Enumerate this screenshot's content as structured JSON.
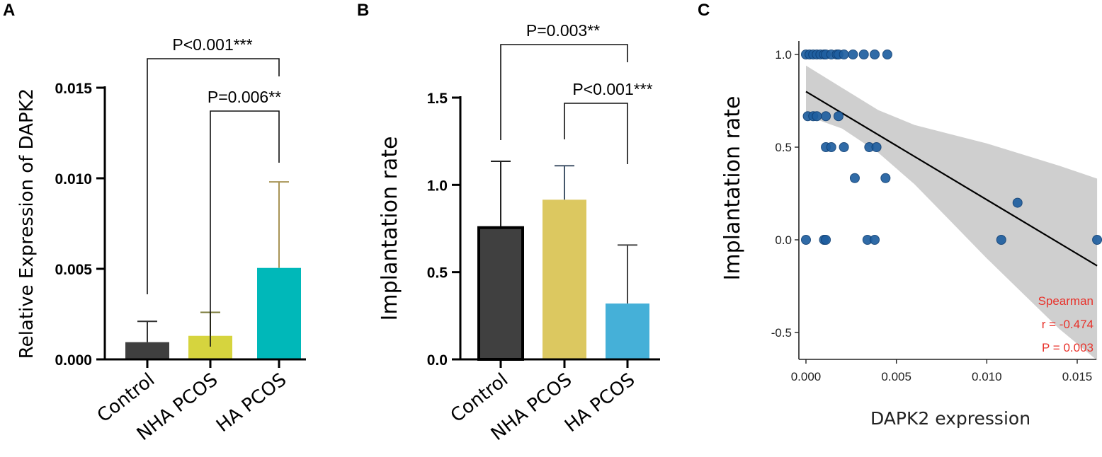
{
  "chart_data": [
    {
      "panel": "A",
      "type": "bar",
      "categories": [
        "Control",
        "NHA PCOS",
        "HA PCOS"
      ],
      "values": [
        0.00095,
        0.0013,
        0.00505
      ],
      "errors": [
        0.00115,
        0.0013,
        0.00475
      ],
      "colors": [
        "#3f3f3f",
        "#d6d43e",
        "#00b8b9"
      ],
      "errorbar_colors": [
        "#333333",
        "#7a7a3a",
        "#a89456"
      ],
      "ylabel": "Relative Expression of DAPK2",
      "ylim": [
        0,
        0.015
      ],
      "yticks": [
        "0.000",
        "0.005",
        "0.010",
        "0.015"
      ],
      "annotations": [
        {
          "text": "P<0.001***",
          "from": 0,
          "to": 2
        },
        {
          "text": "P=0.006**",
          "from": 1,
          "to": 2
        }
      ]
    },
    {
      "panel": "B",
      "type": "bar",
      "categories": [
        "Control",
        "NHA PCOS",
        "HA PCOS"
      ],
      "values": [
        0.755,
        0.915,
        0.32
      ],
      "errors": [
        0.38,
        0.195,
        0.335
      ],
      "colors": [
        "#404040",
        "#dcc860",
        "#45b0d8"
      ],
      "errorbar_colors": [
        "#222222",
        "#44566a",
        "#444444"
      ],
      "ylabel": "Implantation rate",
      "ylim": [
        0,
        1.5
      ],
      "yticks": [
        "0.0",
        "0.5",
        "1.0",
        "1.5"
      ],
      "annotations": [
        {
          "text": "P=0.003**",
          "from": 0,
          "to": 2
        },
        {
          "text": "P<0.001***",
          "from": 1,
          "to": 2
        }
      ]
    },
    {
      "panel": "C",
      "type": "scatter",
      "xlabel": "DAPK2 expression",
      "ylabel": "Implantation rate",
      "xlim": [
        -0.0005,
        0.0163
      ],
      "ylim": [
        -0.65,
        1.05
      ],
      "xticks": [
        "0.000",
        "0.005",
        "0.010",
        "0.015"
      ],
      "yticks": [
        "1.0",
        "0.5",
        "0.0",
        "-0.5"
      ],
      "point_color": "#1f5fa0",
      "points": [
        {
          "x": 0.0,
          "y": 1.0
        },
        {
          "x": 0.0002,
          "y": 1.0
        },
        {
          "x": 0.0004,
          "y": 1.0
        },
        {
          "x": 0.0006,
          "y": 1.0
        },
        {
          "x": 0.0008,
          "y": 1.0
        },
        {
          "x": 0.001,
          "y": 1.0
        },
        {
          "x": 0.0011,
          "y": 1.0
        },
        {
          "x": 0.0014,
          "y": 1.0
        },
        {
          "x": 0.0017,
          "y": 1.0
        },
        {
          "x": 0.0018,
          "y": 1.0
        },
        {
          "x": 0.0021,
          "y": 1.0
        },
        {
          "x": 0.0026,
          "y": 1.0
        },
        {
          "x": 0.0032,
          "y": 1.0
        },
        {
          "x": 0.0038,
          "y": 1.0
        },
        {
          "x": 0.0045,
          "y": 1.0
        },
        {
          "x": 0.0001,
          "y": 0.667
        },
        {
          "x": 0.0004,
          "y": 0.667
        },
        {
          "x": 0.0006,
          "y": 0.667
        },
        {
          "x": 0.0011,
          "y": 0.667
        },
        {
          "x": 0.0018,
          "y": 0.667
        },
        {
          "x": 0.0011,
          "y": 0.5
        },
        {
          "x": 0.0014,
          "y": 0.5
        },
        {
          "x": 0.0021,
          "y": 0.5
        },
        {
          "x": 0.0035,
          "y": 0.5
        },
        {
          "x": 0.0039,
          "y": 0.5
        },
        {
          "x": 0.0027,
          "y": 0.333
        },
        {
          "x": 0.0044,
          "y": 0.333
        },
        {
          "x": 0.0117,
          "y": 0.2
        },
        {
          "x": 0.0,
          "y": 0.0
        },
        {
          "x": 0.001,
          "y": 0.0
        },
        {
          "x": 0.0011,
          "y": 0.0
        },
        {
          "x": 0.0034,
          "y": 0.0
        },
        {
          "x": 0.0038,
          "y": 0.0
        },
        {
          "x": 0.0108,
          "y": 0.0
        },
        {
          "x": 0.0161,
          "y": 0.0
        }
      ],
      "fit_line": {
        "x": [
          0.0,
          0.0161
        ],
        "y": [
          0.8,
          -0.14
        ]
      },
      "ci_band": {
        "x": [
          0.0,
          0.002,
          0.004,
          0.006,
          0.008,
          0.01,
          0.012,
          0.014,
          0.0161
        ],
        "upper": [
          0.94,
          0.82,
          0.7,
          0.62,
          0.57,
          0.52,
          0.46,
          0.4,
          0.33
        ],
        "lower": [
          0.67,
          0.6,
          0.47,
          0.3,
          0.1,
          -0.1,
          -0.29,
          -0.48,
          -0.65
        ]
      },
      "stat_lines": [
        "Spearman",
        "r = -0.474",
        "P = 0.003"
      ],
      "stat_color": "#e8322b"
    }
  ],
  "panel_letters": [
    "A",
    "B",
    "C"
  ]
}
